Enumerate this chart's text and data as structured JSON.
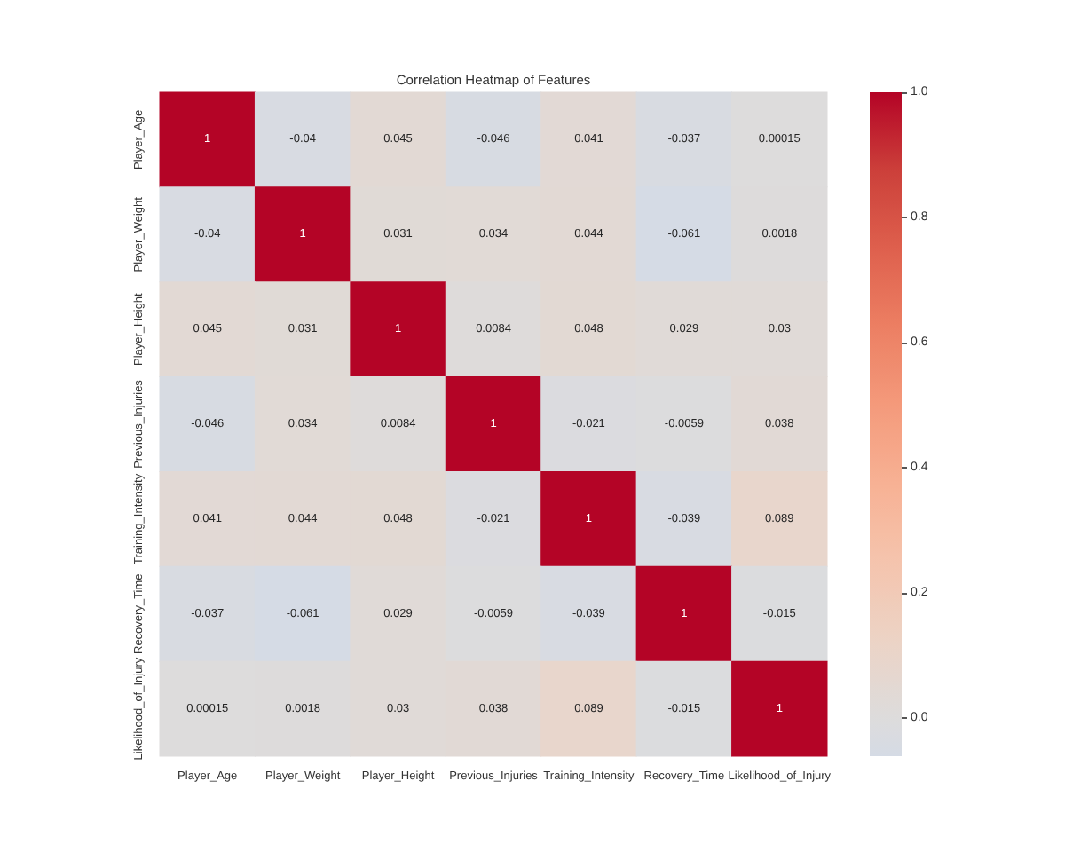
{
  "chart_data": {
    "type": "heatmap",
    "title": "Correlation Heatmap of Features",
    "categories": [
      "Player_Age",
      "Player_Weight",
      "Player_Height",
      "Previous_Injuries",
      "Training_Intensity",
      "Recovery_Time",
      "Likelihood_of_Injury"
    ],
    "y_categories": [
      "Player_Age",
      "Player_Weight",
      "Player_Height",
      "Previous_Injuries",
      "Training_Intensity",
      "Recovery_Time",
      "Likelihood_of_Injury"
    ],
    "cells": [
      [
        1,
        -0.04,
        0.045,
        -0.046,
        0.041,
        -0.037,
        0.00015
      ],
      [
        -0.04,
        1,
        0.031,
        0.034,
        0.044,
        -0.061,
        0.0018
      ],
      [
        0.045,
        0.031,
        1,
        0.0084,
        0.048,
        0.029,
        0.03
      ],
      [
        -0.046,
        0.034,
        0.0084,
        1,
        -0.021,
        -0.0059,
        0.038
      ],
      [
        0.041,
        0.044,
        0.048,
        -0.021,
        1,
        -0.039,
        0.089
      ],
      [
        -0.037,
        -0.061,
        0.029,
        -0.0059,
        -0.039,
        1,
        -0.015
      ],
      [
        0.00015,
        0.0018,
        0.03,
        0.038,
        0.089,
        -0.015,
        1
      ]
    ],
    "clim": [
      -0.061,
      1
    ],
    "cticks": [
      {
        "value": 0,
        "label": "0.0"
      },
      0.2,
      0.4,
      0.6,
      0.8,
      {
        "value": 1,
        "label": "1.0"
      }
    ],
    "data_labels": true
  }
}
